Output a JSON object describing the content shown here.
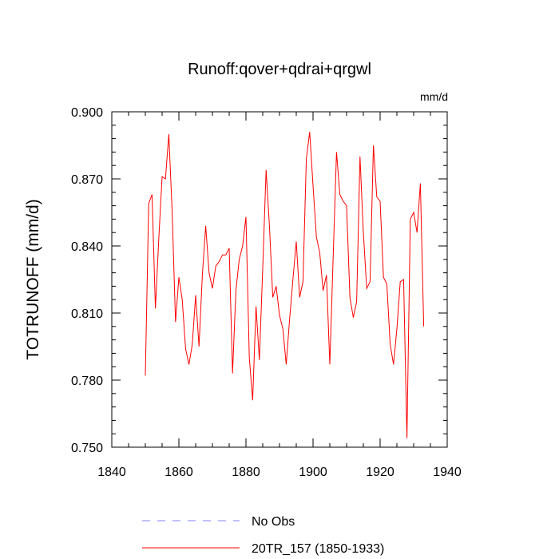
{
  "chart_data": {
    "type": "line",
    "title": "Runoff:qover+qdrai+qrgwl",
    "units": "mm/d",
    "ylabel": "TOTRUNOFF  (mm/d)",
    "xlabel": "",
    "xlim": [
      1840,
      1940
    ],
    "ylim": [
      0.75,
      0.9
    ],
    "xticks": [
      1840,
      1860,
      1880,
      1900,
      1920,
      1940
    ],
    "yticks": [
      0.75,
      0.78,
      0.81,
      0.84,
      0.87,
      0.9
    ],
    "ytick_labels": [
      "0.750",
      "0.780",
      "0.810",
      "0.840",
      "0.870",
      "0.900"
    ],
    "xminor_step": 5,
    "yminor_step": 0.006,
    "series": [
      {
        "name": "No Obs",
        "color": "#8080ff",
        "style": "dashed",
        "x": [],
        "y": []
      },
      {
        "name": "20TR_157 (1850-1933)",
        "color": "#ff0000",
        "style": "solid",
        "x": [
          1850,
          1851,
          1852,
          1853,
          1854,
          1855,
          1856,
          1857,
          1858,
          1859,
          1860,
          1861,
          1862,
          1863,
          1864,
          1865,
          1866,
          1867,
          1868,
          1869,
          1870,
          1871,
          1872,
          1873,
          1874,
          1875,
          1876,
          1877,
          1878,
          1879,
          1880,
          1881,
          1882,
          1883,
          1884,
          1885,
          1886,
          1887,
          1888,
          1889,
          1890,
          1891,
          1892,
          1893,
          1894,
          1895,
          1896,
          1897,
          1898,
          1899,
          1900,
          1901,
          1902,
          1903,
          1904,
          1905,
          1906,
          1907,
          1908,
          1909,
          1910,
          1911,
          1912,
          1913,
          1914,
          1915,
          1916,
          1917,
          1918,
          1919,
          1920,
          1921,
          1922,
          1923,
          1924,
          1925,
          1926,
          1927,
          1928,
          1929,
          1930,
          1931,
          1932,
          1933
        ],
        "y": [
          0.782,
          0.859,
          0.863,
          0.812,
          0.843,
          0.871,
          0.87,
          0.89,
          0.855,
          0.806,
          0.826,
          0.816,
          0.794,
          0.787,
          0.796,
          0.818,
          0.795,
          0.827,
          0.849,
          0.828,
          0.821,
          0.831,
          0.833,
          0.836,
          0.836,
          0.839,
          0.783,
          0.82,
          0.834,
          0.84,
          0.853,
          0.79,
          0.771,
          0.813,
          0.789,
          0.83,
          0.874,
          0.849,
          0.817,
          0.822,
          0.809,
          0.803,
          0.787,
          0.807,
          0.825,
          0.842,
          0.817,
          0.824,
          0.879,
          0.891,
          0.867,
          0.844,
          0.837,
          0.82,
          0.827,
          0.787,
          0.835,
          0.882,
          0.863,
          0.86,
          0.858,
          0.817,
          0.808,
          0.815,
          0.88,
          0.846,
          0.821,
          0.824,
          0.885,
          0.862,
          0.86,
          0.826,
          0.823,
          0.796,
          0.787,
          0.803,
          0.824,
          0.825,
          0.754,
          0.852,
          0.855,
          0.846,
          0.868,
          0.804
        ]
      }
    ]
  }
}
